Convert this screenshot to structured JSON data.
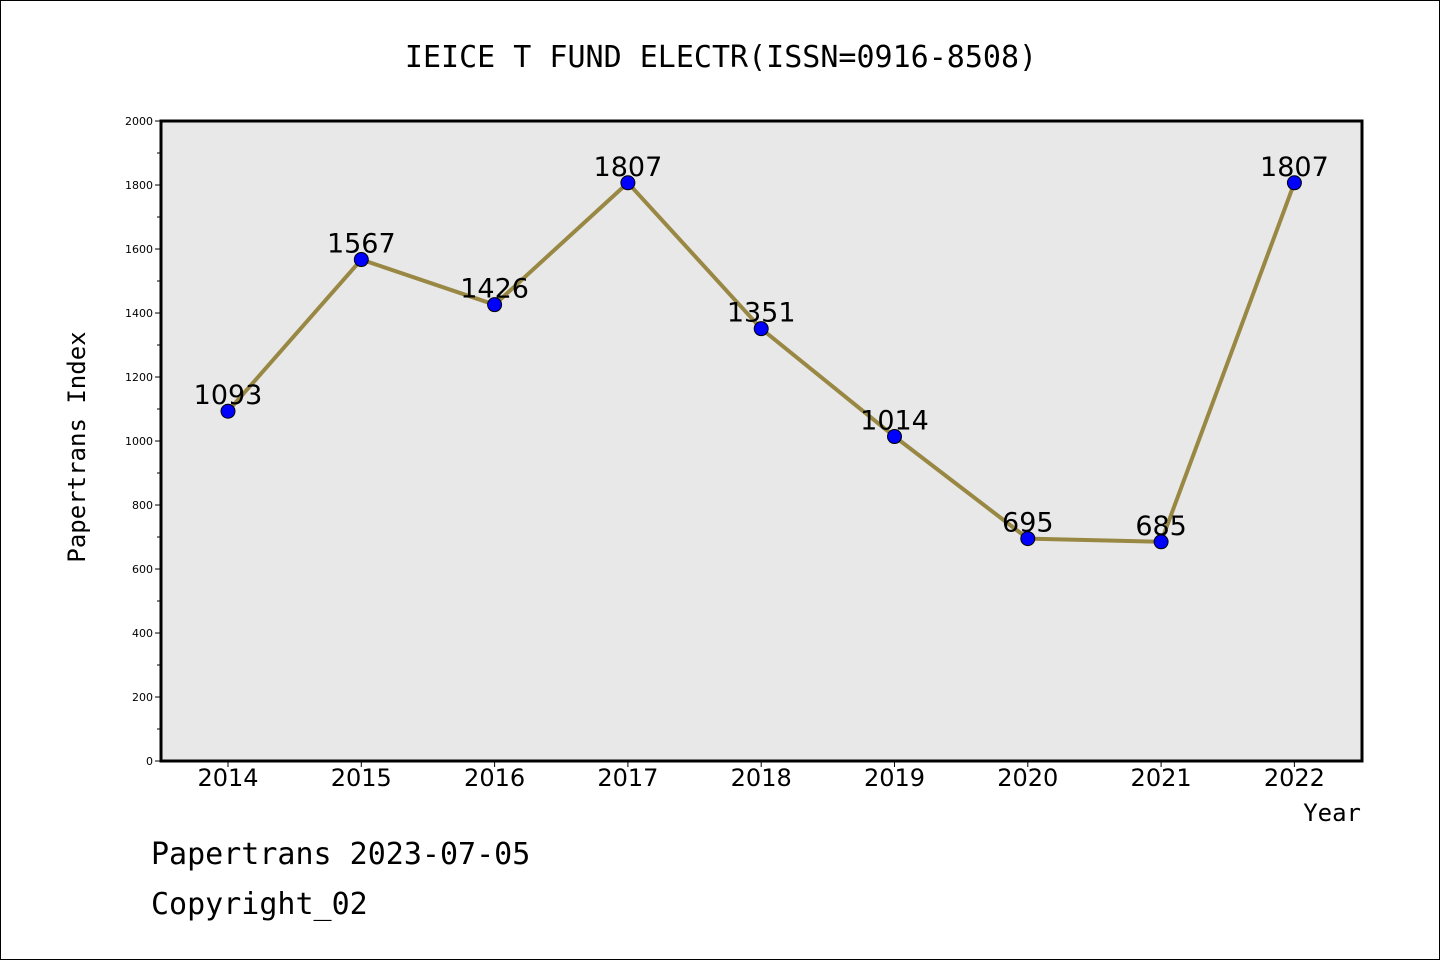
{
  "chart_data": {
    "type": "line",
    "title": "IEICE T FUND ELECTR(ISSN=0916-8508)",
    "xlabel": "Year",
    "ylabel": "Papertrans Index",
    "categories": [
      "2014",
      "2015",
      "2016",
      "2017",
      "2018",
      "2019",
      "2020",
      "2021",
      "2022"
    ],
    "values": [
      1093,
      1567,
      1426,
      1807,
      1351,
      1014,
      695,
      685,
      1807
    ],
    "data_labels": [
      "1093",
      "1567",
      "1426",
      "1807",
      "1351",
      "1014",
      "695",
      "685",
      "1807"
    ],
    "ylim": [
      0,
      2000
    ],
    "yticks": [
      "0",
      "200",
      "400",
      "600",
      "800",
      "1000",
      "1200",
      "1400",
      "1600",
      "1800",
      "2000"
    ],
    "grid": false,
    "line_color": "#998844",
    "marker_color": "#0000ff",
    "plot_background": "#e8e8e8"
  },
  "footer": {
    "date_text": "Papertrans 2023-07-05",
    "copyright_text": "Copyright_02"
  }
}
